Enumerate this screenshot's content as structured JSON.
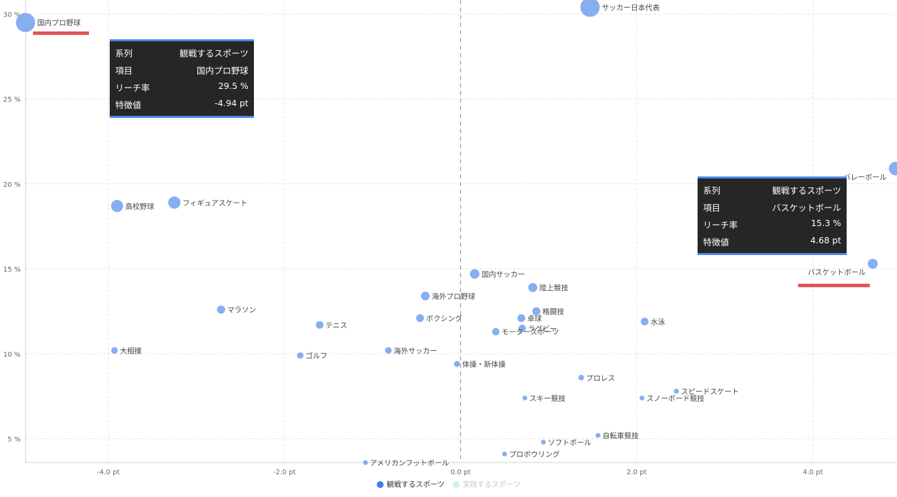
{
  "chart_data": {
    "type": "scatter",
    "xlim": [
      -4.94,
      4.94
    ],
    "ylim": [
      3.6,
      30.5
    ],
    "x_ticks": [
      -4,
      -2,
      0,
      2,
      4
    ],
    "y_ticks": [
      5,
      10,
      15,
      20,
      25,
      30
    ],
    "x_tick_labels": [
      "-4.0 pt",
      "-2.0 pt",
      "0.0 pt",
      "2.0 pt",
      "4.0 pt"
    ],
    "y_tick_labels": [
      "5 %",
      "10 %",
      "15 %",
      "20 %",
      "25 %",
      "30 %"
    ],
    "grid": true,
    "legend_position": "bottom",
    "series": [
      {
        "name": "観戦するスポーツ",
        "color": "#7faaf0",
        "active": true,
        "points": [
          {
            "label": "国内プロ野球",
            "x": -4.94,
            "y": 29.5
          },
          {
            "label": "サッカー日本代表",
            "x": 1.47,
            "y": 30.4
          },
          {
            "label": "バレーボール",
            "x": 4.94,
            "y": 20.9
          },
          {
            "label": "高校野球",
            "x": -3.9,
            "y": 18.7
          },
          {
            "label": "フィギュアスケート",
            "x": -3.25,
            "y": 18.9
          },
          {
            "label": "バスケットボール",
            "x": 4.68,
            "y": 15.3
          },
          {
            "label": "国内サッカー",
            "x": 0.16,
            "y": 14.7
          },
          {
            "label": "陸上競技",
            "x": 0.82,
            "y": 13.9
          },
          {
            "label": "海外プロ野球",
            "x": -0.4,
            "y": 13.4
          },
          {
            "label": "マラソン",
            "x": -2.72,
            "y": 12.6
          },
          {
            "label": "格闘技",
            "x": 0.86,
            "y": 12.5
          },
          {
            "label": "卓球",
            "x": 0.69,
            "y": 12.1
          },
          {
            "label": "ボクシング",
            "x": -0.46,
            "y": 12.1
          },
          {
            "label": "水泳",
            "x": 2.09,
            "y": 11.9
          },
          {
            "label": "テニス",
            "x": -1.6,
            "y": 11.7
          },
          {
            "label": "ラグビー",
            "x": 0.7,
            "y": 11.5
          },
          {
            "label": "モータースポーツ",
            "x": 0.4,
            "y": 11.3
          },
          {
            "label": "海外サッカー",
            "x": -0.82,
            "y": 10.2
          },
          {
            "label": "大相撲",
            "x": -3.93,
            "y": 10.2
          },
          {
            "label": "ゴルフ",
            "x": -1.82,
            "y": 9.9
          },
          {
            "label": "体操・新体操",
            "x": -0.04,
            "y": 9.4
          },
          {
            "label": "プロレス",
            "x": 1.37,
            "y": 8.6
          },
          {
            "label": "スピードスケート",
            "x": 2.45,
            "y": 7.8
          },
          {
            "label": "スキー競技",
            "x": 0.73,
            "y": 7.4
          },
          {
            "label": "スノーボード競技",
            "x": 2.06,
            "y": 7.4
          },
          {
            "label": "自転車競技",
            "x": 1.56,
            "y": 5.2
          },
          {
            "label": "ソフトボール",
            "x": 0.94,
            "y": 4.8
          },
          {
            "label": "プロボウリング",
            "x": 0.5,
            "y": 4.1
          },
          {
            "label": "アメリカンフットボール",
            "x": -1.08,
            "y": 3.6
          }
        ]
      },
      {
        "name": "実践するスポーツ",
        "color": "#c5ece0",
        "active": false,
        "points": []
      }
    ],
    "tooltips": [
      {
        "rows": [
          {
            "k": "系列",
            "v": "観戦するスポーツ"
          },
          {
            "k": "項目",
            "v": "国内プロ野球"
          },
          {
            "k": "リーチ率",
            "v": "29.5 %"
          },
          {
            "k": "特徴値",
            "v": "-4.94 pt"
          }
        ]
      },
      {
        "rows": [
          {
            "k": "系列",
            "v": "観戦するスポーツ"
          },
          {
            "k": "項目",
            "v": "バスケットボール"
          },
          {
            "k": "リーチ率",
            "v": "15.3 %"
          },
          {
            "k": "特徴値",
            "v": "4.68 pt"
          }
        ]
      }
    ],
    "highlight_color": "#e05252"
  }
}
